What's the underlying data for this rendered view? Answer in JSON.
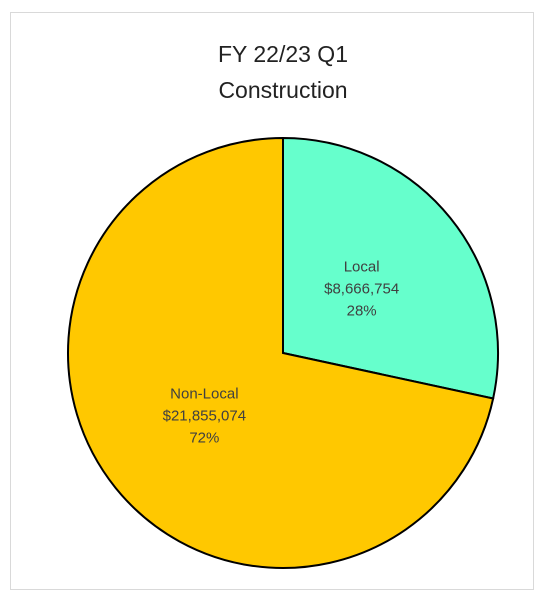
{
  "chart_data": {
    "type": "pie",
    "title": [
      "FY 22/23 Q1",
      "Construction"
    ],
    "categories": [
      "Local",
      "Non-Local"
    ],
    "values": [
      8666754,
      21855074
    ],
    "value_labels": [
      "$8,666,754",
      "$21,855,074"
    ],
    "percent_labels": [
      "28%",
      "72%"
    ],
    "colors": [
      "#66ffcc",
      "#ffc800"
    ]
  }
}
